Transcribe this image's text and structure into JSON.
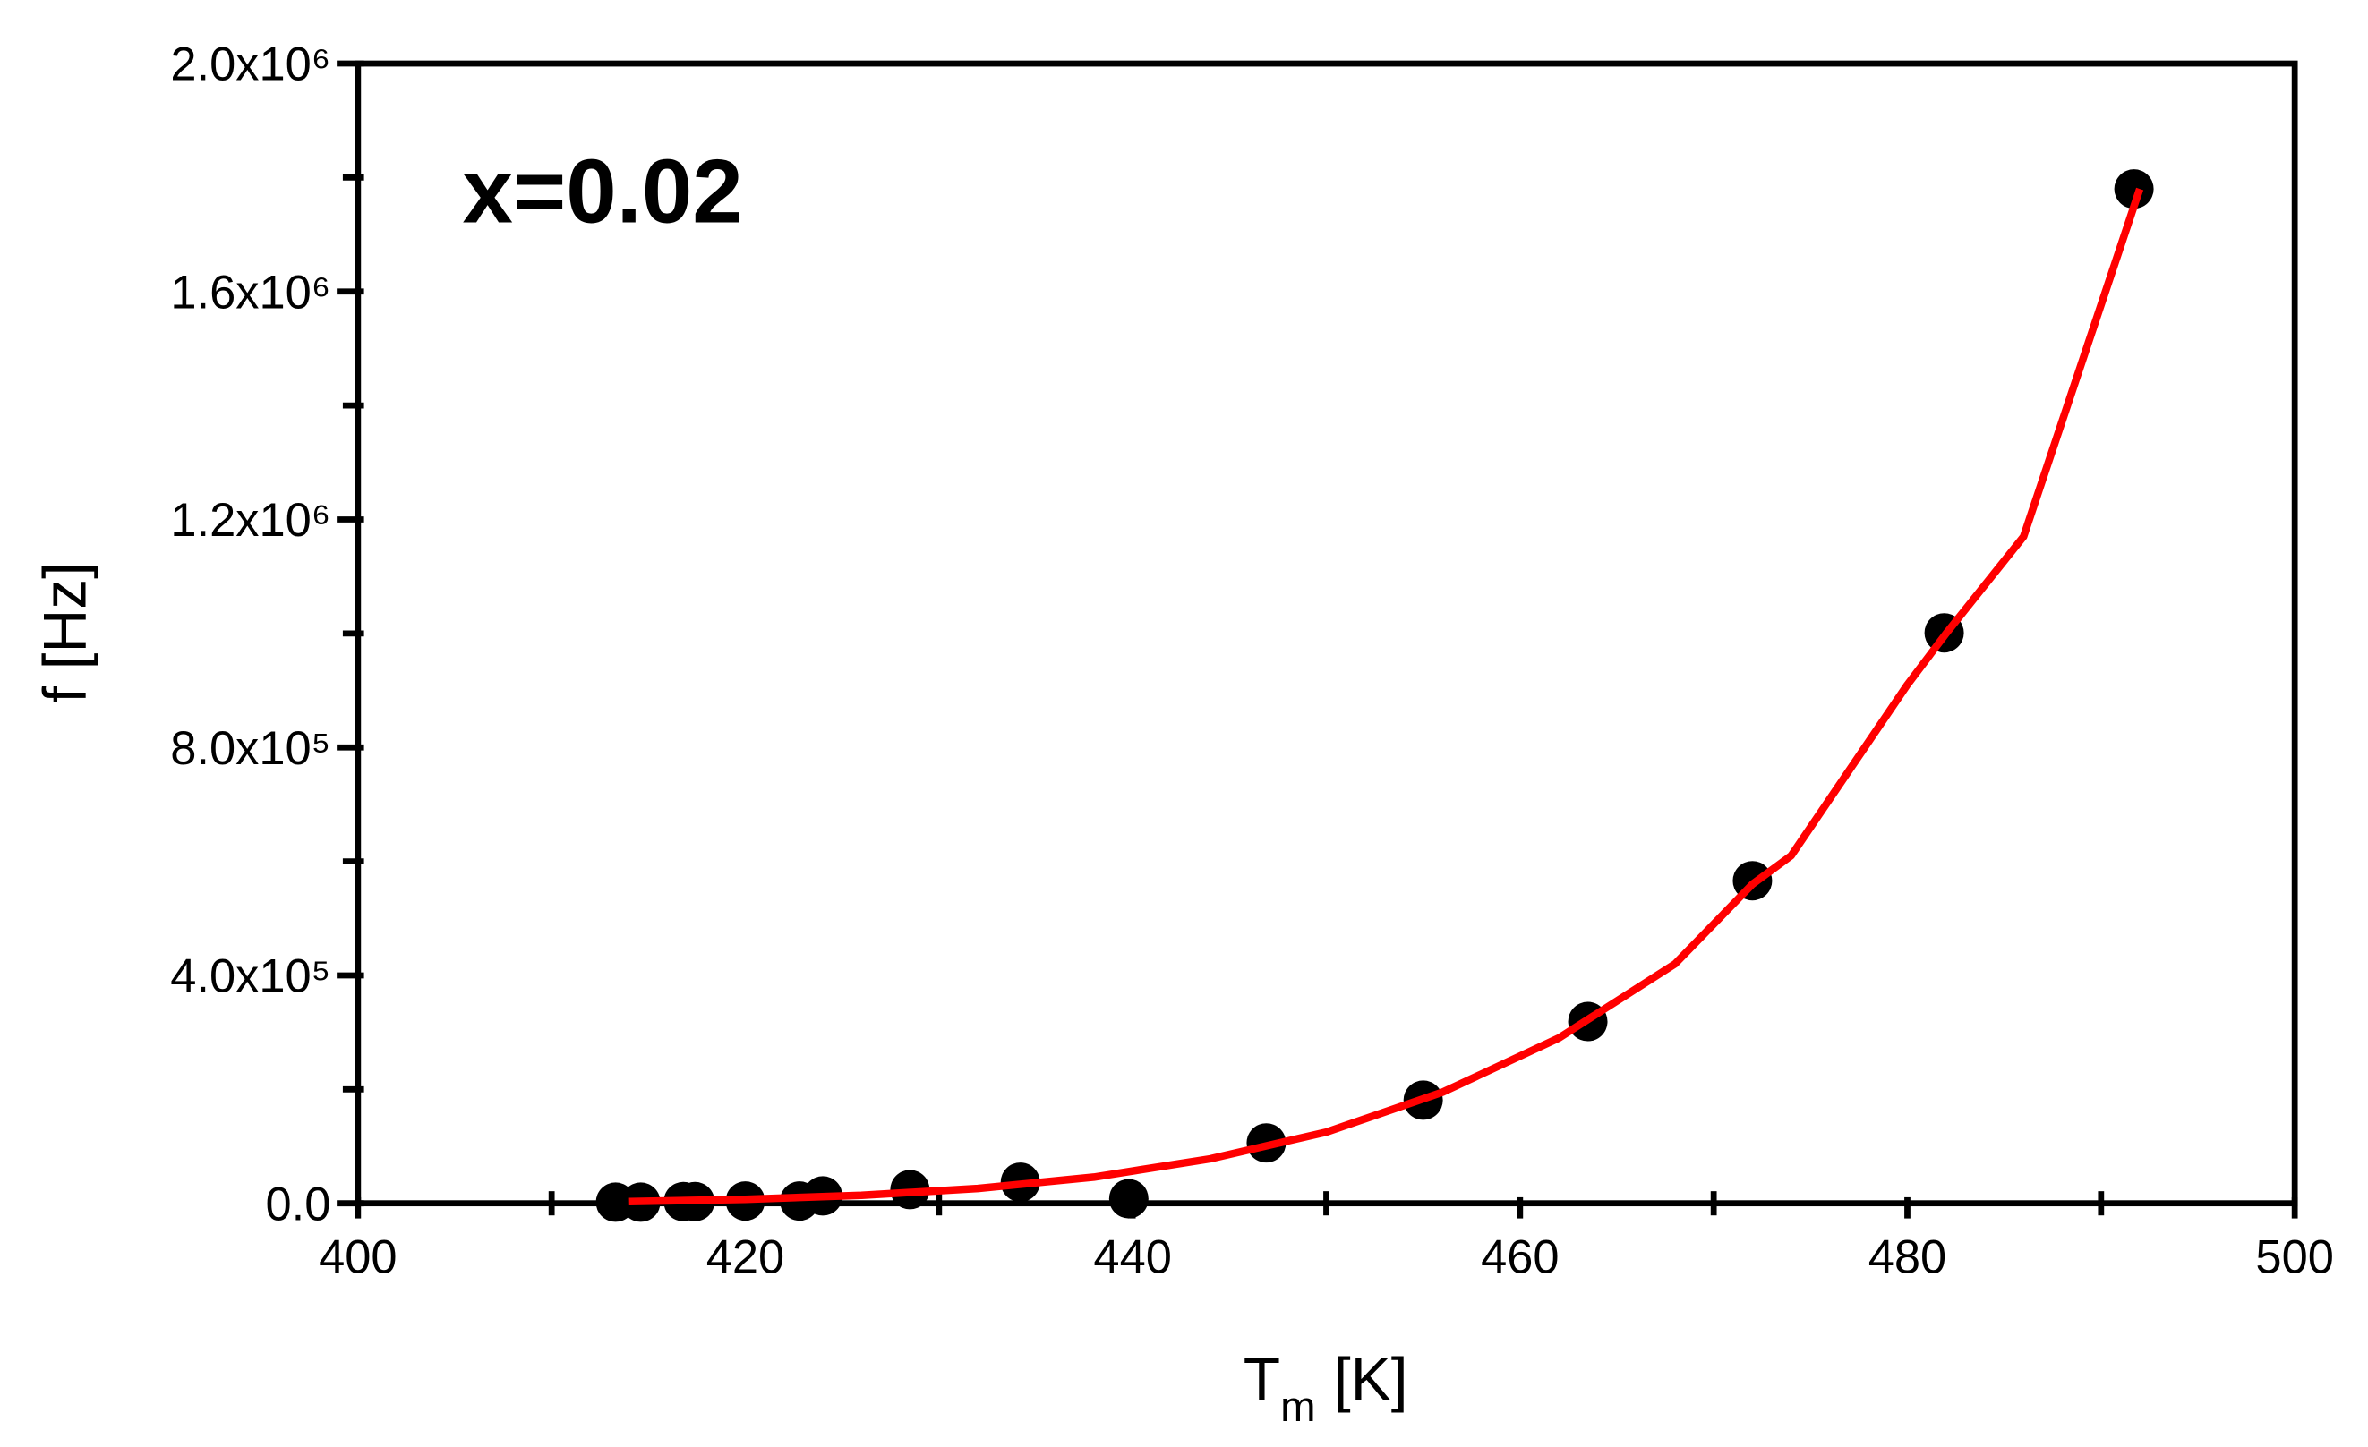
{
  "chart_data": {
    "type": "scatter",
    "annotation": "x=0.02",
    "xlabel": [
      "T",
      "m",
      "[K]"
    ],
    "ylabel": "f [Hz]",
    "xlim": [
      400,
      500
    ],
    "xticks": [
      400,
      420,
      440,
      460,
      480,
      500
    ],
    "xminorticks": [
      410,
      430,
      450,
      470,
      490
    ],
    "ylim": [
      0,
      2000000
    ],
    "yticks": [
      {
        "value": 0,
        "label": "0.0"
      },
      {
        "value": 400000,
        "label": "4.0x10⁵"
      },
      {
        "value": 800000,
        "label": "8.0x10⁵"
      },
      {
        "value": 1200000,
        "label": "1.2x10⁶"
      },
      {
        "value": 1600000,
        "label": "1.6x10⁶"
      },
      {
        "value": 2000000,
        "label": "2.0x10⁶"
      }
    ],
    "yminorticks": [
      200000,
      600000,
      1000000,
      1400000,
      1800000
    ],
    "series": [
      {
        "color": "#000000",
        "x": [
          413.3,
          414.6,
          416.8,
          417.4,
          420.0,
          422.8,
          424.0,
          428.5,
          434.2,
          439.8,
          446.9,
          455.0,
          463.5,
          472.0,
          481.9,
          491.7
        ],
        "values": [
          2000,
          2000,
          3000,
          3000,
          4000,
          4000,
          13000,
          24000,
          37000,
          8000,
          106000,
          181000,
          319000,
          566000,
          1001000,
          1780000
        ]
      },
      {
        "color": "#ff0000",
        "line": true,
        "x": [
          414,
          420,
          426,
          432,
          438,
          444,
          450,
          456,
          462,
          468,
          472,
          474,
          480,
          482,
          486,
          492
        ],
        "values": [
          3000,
          7000,
          14000,
          26000,
          46000,
          78000,
          125000,
          195000,
          290000,
          420000,
          560000,
          610000,
          910000,
          1000000,
          1170000,
          1780000
        ]
      }
    ]
  }
}
